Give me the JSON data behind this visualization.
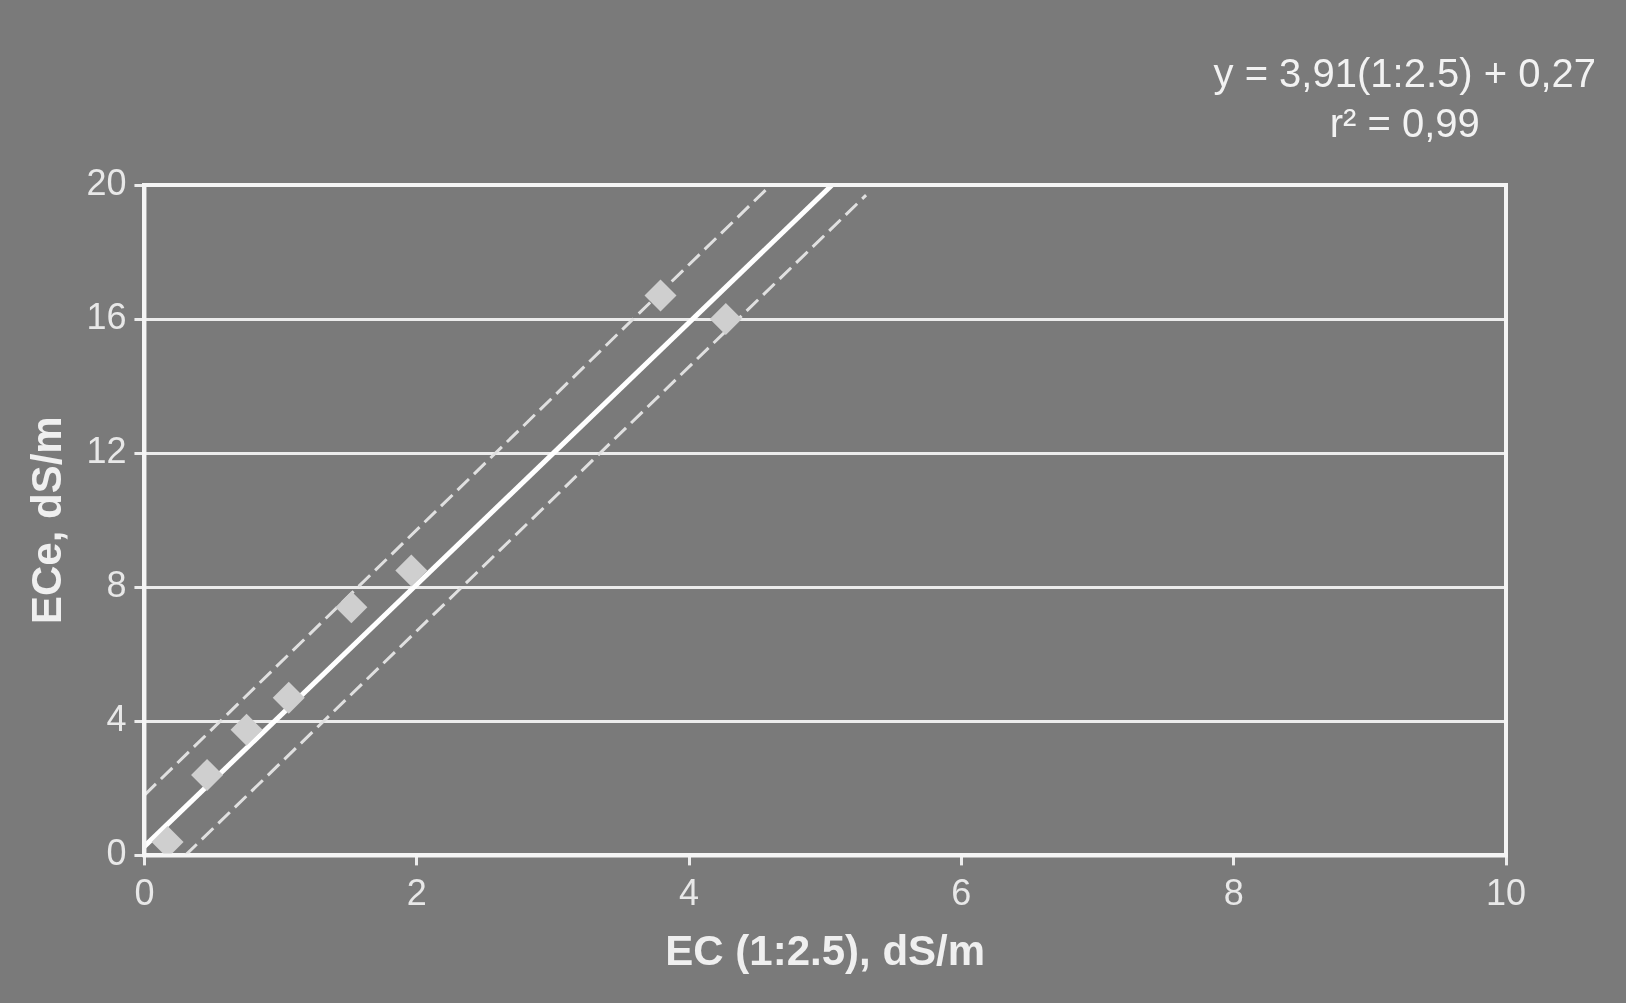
{
  "chart_data": {
    "type": "scatter",
    "xlabel": "EC (1:2.5), dS/m",
    "ylabel": "ECe, dS/m",
    "annotations": [
      "y = 3,91(1:2.5) + 0,27",
      "r² = 0,99"
    ],
    "xlim": [
      0,
      10
    ],
    "xticks": [
      0,
      2,
      4,
      6,
      8,
      10
    ],
    "ylim": [
      0,
      20
    ],
    "yticks": [
      0,
      4,
      8,
      12,
      16,
      20
    ],
    "grid": "y",
    "legend": false,
    "series": [
      {
        "type": "scatter",
        "color": "#cfcfcf",
        "marker": "diamond",
        "x": [
          0.17,
          0.46,
          0.75,
          1.06,
          1.52,
          1.96,
          3.79,
          4.27
        ],
        "values": [
          0.4,
          2.4,
          3.75,
          4.7,
          7.4,
          8.5,
          16.7,
          16.0
        ]
      },
      {
        "type": "line",
        "color": "#ffffff",
        "line_style": "solid",
        "marker": "none",
        "x": [
          0,
          5.05
        ],
        "values": [
          0.27,
          20
        ]
      },
      {
        "type": "line",
        "color": "#e0e0e0",
        "line_style": "dashed",
        "marker": "none",
        "x": [
          0,
          4.6
        ],
        "values": [
          1.8,
          20
        ]
      },
      {
        "type": "line",
        "color": "#e0e0e0",
        "line_style": "dashed",
        "marker": "none",
        "x": [
          0.3,
          5.3
        ],
        "values": [
          0,
          19.7
        ]
      }
    ]
  }
}
